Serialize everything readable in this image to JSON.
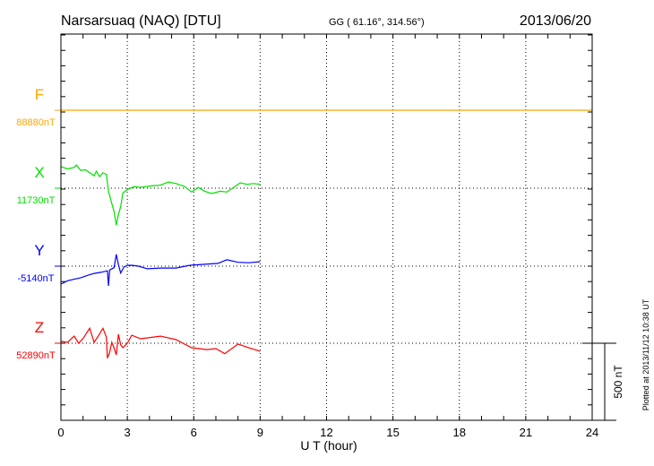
{
  "header": {
    "station": "Narsarsuaq (NAQ)  [DTU]",
    "coords": "GG ( 61.16°, 314.56°)",
    "date": "2013/06/20"
  },
  "footer_note": "Plotted at 2013/11/12 10:38 UT",
  "chart_data": {
    "type": "line",
    "title": "Narsarsuaq (NAQ)  [DTU]",
    "xlabel": "U T (hour)",
    "xlim": [
      0,
      24
    ],
    "xticks": [
      "0",
      "3",
      "6",
      "9",
      "12",
      "15",
      "18",
      "21",
      "24"
    ],
    "grid": true,
    "scale_bar": {
      "value_nT": 500,
      "label": "500 nT"
    },
    "series": [
      {
        "name": "F",
        "baseline_label": "88880nT",
        "color": "#ffa500",
        "points": [
          [
            0,
            0
          ],
          [
            24,
            0
          ]
        ]
      },
      {
        "name": "X",
        "baseline_label": "11730nT",
        "color": "#00e000",
        "points": [
          [
            0,
            140
          ],
          [
            0.3,
            125
          ],
          [
            0.6,
            135
          ],
          [
            0.7,
            150
          ],
          [
            0.9,
            115
          ],
          [
            1.1,
            120
          ],
          [
            1.3,
            100
          ],
          [
            1.5,
            80
          ],
          [
            1.6,
            110
          ],
          [
            1.75,
            75
          ],
          [
            1.9,
            100
          ],
          [
            2.05,
            90
          ],
          [
            2.15,
            -20
          ],
          [
            2.3,
            -100
          ],
          [
            2.4,
            -150
          ],
          [
            2.5,
            -240
          ],
          [
            2.6,
            -170
          ],
          [
            2.7,
            -120
          ],
          [
            2.8,
            -30
          ],
          [
            3.0,
            -10
          ],
          [
            3.3,
            10
          ],
          [
            3.6,
            5
          ],
          [
            4.1,
            15
          ],
          [
            4.5,
            20
          ],
          [
            4.85,
            40
          ],
          [
            5.2,
            30
          ],
          [
            5.6,
            10
          ],
          [
            5.9,
            -25
          ],
          [
            6.2,
            5
          ],
          [
            6.5,
            -20
          ],
          [
            6.8,
            -35
          ],
          [
            7.2,
            -20
          ],
          [
            7.5,
            -25
          ],
          [
            8.1,
            35
          ],
          [
            8.4,
            25
          ],
          [
            8.7,
            30
          ],
          [
            9.0,
            25
          ]
        ]
      },
      {
        "name": "Y",
        "baseline_label": "-5140nT",
        "color": "#0000ff",
        "points": [
          [
            0,
            -116
          ],
          [
            0.3,
            -95
          ],
          [
            0.6,
            -85
          ],
          [
            0.9,
            -75
          ],
          [
            1.2,
            -60
          ],
          [
            1.5,
            -47
          ],
          [
            1.8,
            -40
          ],
          [
            2.1,
            -30
          ],
          [
            2.15,
            -128
          ],
          [
            2.2,
            -25
          ],
          [
            2.4,
            -10
          ],
          [
            2.5,
            76
          ],
          [
            2.6,
            10
          ],
          [
            2.7,
            -45
          ],
          [
            2.85,
            -5
          ],
          [
            3.0,
            5
          ],
          [
            3.2,
            6
          ],
          [
            3.5,
            0
          ],
          [
            3.9,
            -17
          ],
          [
            4.5,
            -12
          ],
          [
            5.2,
            -12
          ],
          [
            5.8,
            5
          ],
          [
            6.5,
            12
          ],
          [
            7.1,
            18
          ],
          [
            7.5,
            42
          ],
          [
            8.0,
            25
          ],
          [
            8.5,
            22
          ],
          [
            9.0,
            29
          ]
        ]
      },
      {
        "name": "Z",
        "baseline_label": "52890nT",
        "color": "#ff0000",
        "points": [
          [
            0,
            12
          ],
          [
            0.3,
            5
          ],
          [
            0.6,
            46
          ],
          [
            0.8,
            0
          ],
          [
            1.0,
            30
          ],
          [
            1.3,
            97
          ],
          [
            1.5,
            6
          ],
          [
            1.7,
            50
          ],
          [
            1.9,
            97
          ],
          [
            2.05,
            40
          ],
          [
            2.1,
            -97
          ],
          [
            2.2,
            -60
          ],
          [
            2.3,
            6
          ],
          [
            2.4,
            -30
          ],
          [
            2.5,
            -75
          ],
          [
            2.6,
            58
          ],
          [
            2.7,
            -10
          ],
          [
            2.8,
            -29
          ],
          [
            3.0,
            0
          ],
          [
            3.2,
            52
          ],
          [
            3.6,
            29
          ],
          [
            4.5,
            46
          ],
          [
            5.2,
            23
          ],
          [
            5.9,
            -29
          ],
          [
            6.6,
            -41
          ],
          [
            7.0,
            -35
          ],
          [
            7.4,
            -68
          ],
          [
            8.0,
            -5
          ],
          [
            8.5,
            -30
          ],
          [
            9.0,
            -52
          ]
        ]
      }
    ]
  }
}
